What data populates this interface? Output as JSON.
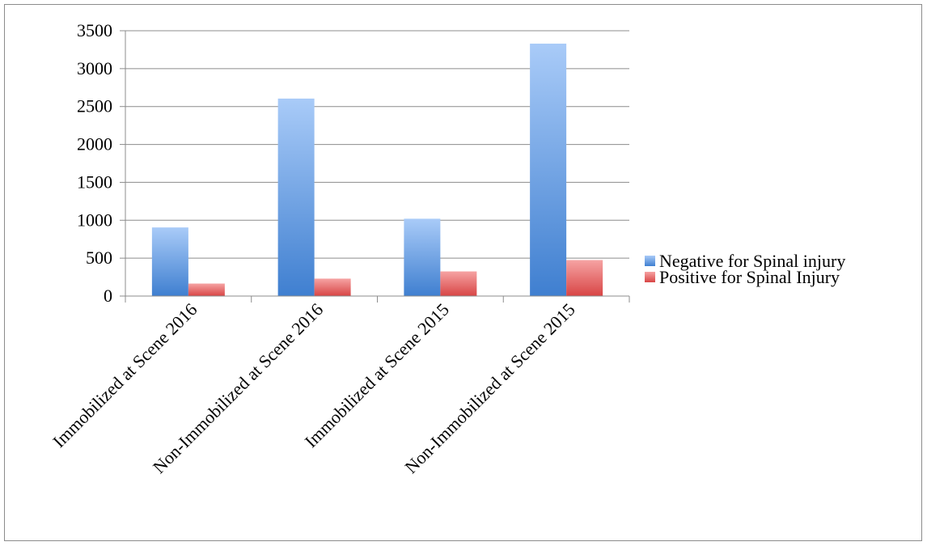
{
  "chart_data": {
    "type": "bar",
    "title": "",
    "xlabel": "",
    "ylabel": "",
    "categories": [
      "Immobilized at Scene 2016",
      "Non-Immobilized at Scene 2016",
      "Immobilized at Scene 2015",
      "Non-Immobilized at Scene 2015"
    ],
    "series": [
      {
        "name": "Negative for Spinal injury",
        "values": [
          905,
          2605,
          1020,
          3330
        ],
        "color": "#4a86d4"
      },
      {
        "name": "Positive for Spinal Injury",
        "values": [
          165,
          230,
          325,
          475
        ],
        "color": "#e05555"
      }
    ],
    "ylim": [
      0,
      3500
    ],
    "yticks": [
      0,
      500,
      1000,
      1500,
      2000,
      2500,
      3000,
      3500
    ],
    "grid": true,
    "legend_position": "right"
  }
}
